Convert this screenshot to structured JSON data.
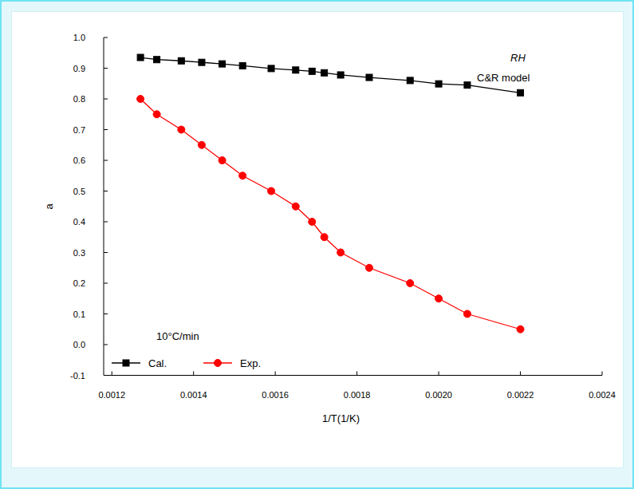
{
  "chart_data": {
    "type": "line",
    "x_label": "1/T(1/K)",
    "y_label": "a",
    "annotations": [
      "RH",
      "C&R model",
      "10°C/min"
    ],
    "x": [
      0.00127,
      0.00131,
      0.00137,
      0.00142,
      0.00147,
      0.00152,
      0.00159,
      0.00165,
      0.00169,
      0.00172,
      0.00176,
      0.00183,
      0.00193,
      0.002,
      0.00207,
      0.0022
    ],
    "series": [
      {
        "name": "Cal.",
        "color": "#000000",
        "marker": "square",
        "line_style": "solid",
        "values": [
          0.935,
          0.928,
          0.924,
          0.919,
          0.914,
          0.908,
          0.899,
          0.894,
          0.89,
          0.885,
          0.878,
          0.87,
          0.86,
          0.849,
          0.845,
          0.82
        ]
      },
      {
        "name": "Exp.",
        "color": "#ff0000",
        "marker": "circle",
        "line_style": "solid",
        "values": [
          0.8,
          0.75,
          0.7,
          0.65,
          0.6,
          0.55,
          0.5,
          0.45,
          0.4,
          0.35,
          0.3,
          0.25,
          0.2,
          0.15,
          0.1,
          0.05
        ]
      }
    ],
    "xlim": [
      0.00118,
      0.0024
    ],
    "xticks": [
      0.0012,
      0.0014,
      0.0016,
      0.0018,
      {
        "value": 0.002,
        "label": "0.0020"
      },
      0.0022,
      0.0024
    ],
    "ylim": [
      -0.1,
      1.0
    ],
    "yticks": [
      -0.1,
      {
        "value": 0,
        "label": "0.0"
      },
      0.1,
      0.2,
      0.3,
      0.4,
      0.5,
      0.6,
      0.7,
      0.8,
      0.9,
      {
        "value": 1,
        "label": "1.0"
      }
    ],
    "grid": false,
    "legend": "lower left"
  }
}
